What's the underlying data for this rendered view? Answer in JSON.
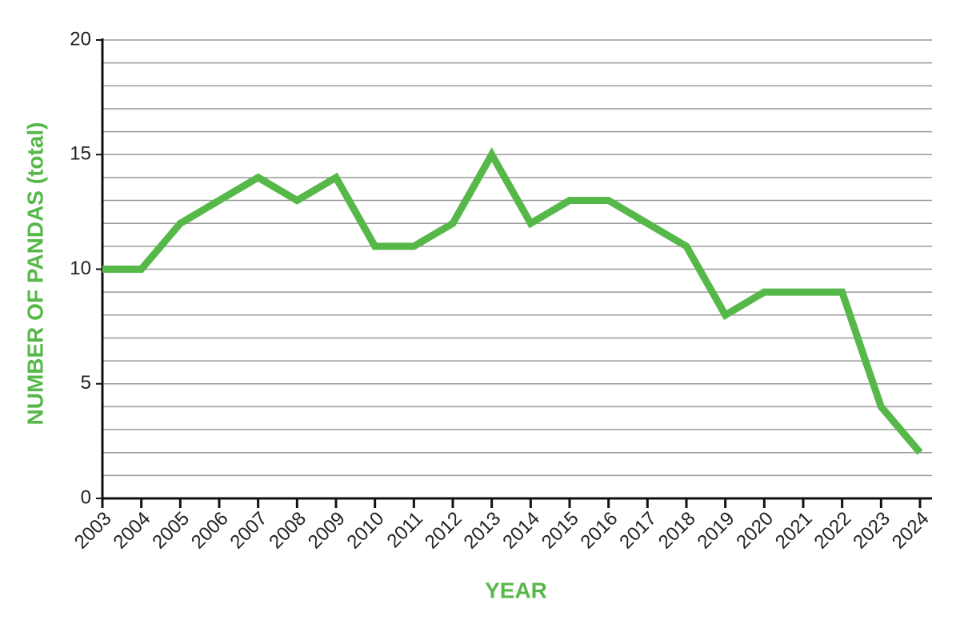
{
  "chart_data": {
    "type": "line",
    "x_label": "YEAR",
    "y_label": "NUMBER OF PANDAS (total)",
    "categories": [
      "2003",
      "2004",
      "2005",
      "2006",
      "2007",
      "2008",
      "2009",
      "2010",
      "2011",
      "2012",
      "2013",
      "2014",
      "2015",
      "2016",
      "2017",
      "2018",
      "2019",
      "2020",
      "2021",
      "2022",
      "2023",
      "2024"
    ],
    "values": [
      10,
      10,
      12,
      13,
      14,
      13,
      14,
      11,
      11,
      12,
      15,
      12,
      13,
      13,
      12,
      11,
      8,
      9,
      9,
      9,
      4,
      2
    ],
    "color": "#57b84a",
    "ylim": [
      0,
      20
    ],
    "yticks": [
      0,
      5,
      10,
      15,
      20
    ],
    "yminorticks": [
      0,
      1,
      2,
      3,
      4,
      5,
      6,
      7,
      8,
      9,
      10,
      11,
      12,
      13,
      14,
      15,
      16,
      17,
      18,
      19,
      20
    ],
    "grid": true
  }
}
